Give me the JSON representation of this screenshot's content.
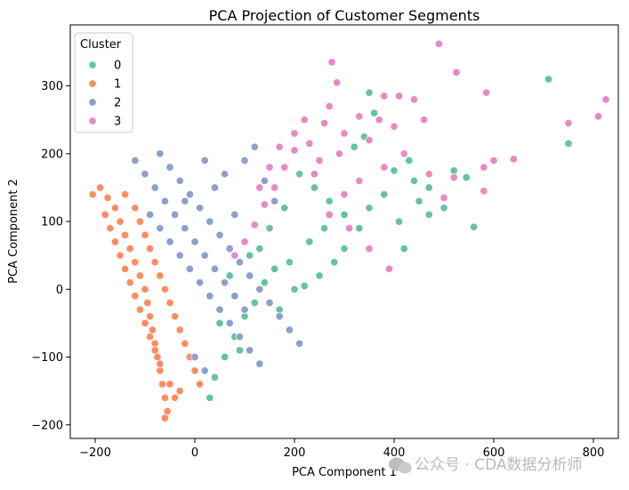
{
  "chart_data": {
    "type": "scatter",
    "title": "PCA Projection of Customer Segments",
    "xlabel": "PCA Component 1",
    "ylabel": "PCA Component 2",
    "xlim": [
      -250,
      850
    ],
    "ylim": [
      -220,
      390
    ],
    "xticks": [
      -200,
      0,
      200,
      400,
      600,
      800
    ],
    "yticks": [
      -200,
      -100,
      0,
      100,
      200,
      300
    ],
    "grid": false,
    "legend": {
      "title": "Cluster",
      "placement": "top-left"
    },
    "series": [
      {
        "name": "0",
        "color": "#66c2a5",
        "points": [
          [
            710,
            310
          ],
          [
            750,
            215
          ],
          [
            520,
            175
          ],
          [
            545,
            165
          ],
          [
            560,
            92
          ],
          [
            500,
            120
          ],
          [
            470,
            150
          ],
          [
            430,
            190
          ],
          [
            400,
            175
          ],
          [
            380,
            140
          ],
          [
            350,
            120
          ],
          [
            330,
            90
          ],
          [
            300,
            60
          ],
          [
            280,
            40
          ],
          [
            250,
            20
          ],
          [
            220,
            5
          ],
          [
            190,
            40
          ],
          [
            160,
            30
          ],
          [
            140,
            10
          ],
          [
            120,
            -20
          ],
          [
            100,
            -40
          ],
          [
            80,
            -70
          ],
          [
            60,
            -100
          ],
          [
            40,
            -130
          ],
          [
            30,
            -160
          ],
          [
            340,
            225
          ],
          [
            360,
            260
          ],
          [
            350,
            290
          ],
          [
            320,
            210
          ],
          [
            450,
            130
          ],
          [
            420,
            60
          ],
          [
            390,
            30
          ],
          [
            410,
            100
          ],
          [
            440,
            160
          ],
          [
            470,
            110
          ],
          [
            300,
            110
          ],
          [
            270,
            130
          ],
          [
            240,
            150
          ],
          [
            210,
            170
          ],
          [
            260,
            90
          ],
          [
            180,
            120
          ],
          [
            150,
            90
          ],
          [
            130,
            60
          ],
          [
            200,
            0
          ],
          [
            170,
            -30
          ],
          [
            90,
            -90
          ],
          [
            50,
            -50
          ],
          [
            70,
            20
          ],
          [
            110,
            50
          ],
          [
            230,
            70
          ]
        ]
      },
      {
        "name": "1",
        "color": "#fc8d62",
        "points": [
          [
            -205,
            140
          ],
          [
            -190,
            150
          ],
          [
            -175,
            135
          ],
          [
            -160,
            120
          ],
          [
            -150,
            100
          ],
          [
            -140,
            80
          ],
          [
            -130,
            60
          ],
          [
            -120,
            40
          ],
          [
            -110,
            20
          ],
          [
            -100,
            0
          ],
          [
            -95,
            -20
          ],
          [
            -90,
            -40
          ],
          [
            -85,
            -60
          ],
          [
            -80,
            -80
          ],
          [
            -75,
            -100
          ],
          [
            -70,
            -120
          ],
          [
            -65,
            -140
          ],
          [
            -60,
            -160
          ],
          [
            -55,
            -180
          ],
          [
            -60,
            -190
          ],
          [
            -120,
            120
          ],
          [
            -140,
            140
          ],
          [
            -110,
            100
          ],
          [
            -100,
            80
          ],
          [
            -90,
            60
          ],
          [
            -80,
            40
          ],
          [
            -70,
            20
          ],
          [
            -60,
            0
          ],
          [
            -50,
            -20
          ],
          [
            -40,
            -40
          ],
          [
            -30,
            -60
          ],
          [
            -20,
            -80
          ],
          [
            -10,
            -100
          ],
          [
            0,
            -120
          ],
          [
            10,
            -140
          ],
          [
            -180,
            110
          ],
          [
            -170,
            90
          ],
          [
            -160,
            70
          ],
          [
            -150,
            50
          ],
          [
            -140,
            30
          ],
          [
            -130,
            10
          ],
          [
            -120,
            -10
          ],
          [
            -110,
            -30
          ],
          [
            -100,
            -50
          ],
          [
            -90,
            -70
          ],
          [
            -80,
            -90
          ],
          [
            -70,
            -110
          ],
          [
            -50,
            -140
          ],
          [
            -40,
            -160
          ],
          [
            -30,
            -150
          ]
        ]
      },
      {
        "name": "2",
        "color": "#8da0cb",
        "points": [
          [
            -70,
            200
          ],
          [
            -50,
            180
          ],
          [
            -30,
            160
          ],
          [
            -10,
            140
          ],
          [
            10,
            120
          ],
          [
            30,
            100
          ],
          [
            50,
            80
          ],
          [
            70,
            60
          ],
          [
            90,
            40
          ],
          [
            110,
            20
          ],
          [
            130,
            0
          ],
          [
            150,
            -20
          ],
          [
            170,
            -40
          ],
          [
            190,
            -60
          ],
          [
            210,
            -80
          ],
          [
            -80,
            150
          ],
          [
            -60,
            130
          ],
          [
            -40,
            110
          ],
          [
            -20,
            90
          ],
          [
            0,
            70
          ],
          [
            20,
            50
          ],
          [
            40,
            30
          ],
          [
            60,
            10
          ],
          [
            80,
            -10
          ],
          [
            100,
            -30
          ],
          [
            -100,
            170
          ],
          [
            -120,
            190
          ],
          [
            -90,
            110
          ],
          [
            -70,
            90
          ],
          [
            -50,
            70
          ],
          [
            -30,
            50
          ],
          [
            -10,
            30
          ],
          [
            10,
            10
          ],
          [
            30,
            -10
          ],
          [
            50,
            -30
          ],
          [
            70,
            -50
          ],
          [
            90,
            -70
          ],
          [
            110,
            -90
          ],
          [
            130,
            -110
          ],
          [
            20,
            -120
          ],
          [
            0,
            -100
          ],
          [
            -20,
            130
          ],
          [
            40,
            150
          ],
          [
            60,
            170
          ],
          [
            120,
            210
          ],
          [
            100,
            190
          ],
          [
            140,
            160
          ],
          [
            160,
            130
          ],
          [
            80,
            110
          ],
          [
            20,
            190
          ]
        ]
      },
      {
        "name": "3",
        "color": "#e78ac3",
        "points": [
          [
            490,
            362
          ],
          [
            275,
            335
          ],
          [
            525,
            320
          ],
          [
            285,
            305
          ],
          [
            410,
            285
          ],
          [
            440,
            280
          ],
          [
            380,
            285
          ],
          [
            585,
            290
          ],
          [
            330,
            255
          ],
          [
            370,
            250
          ],
          [
            270,
            270
          ],
          [
            460,
            250
          ],
          [
            400,
            240
          ],
          [
            300,
            230
          ],
          [
            350,
            220
          ],
          [
            420,
            200
          ],
          [
            600,
            190
          ],
          [
            640,
            192
          ],
          [
            580,
            180
          ],
          [
            750,
            245
          ],
          [
            810,
            255
          ],
          [
            825,
            280
          ],
          [
            470,
            170
          ],
          [
            520,
            165
          ],
          [
            500,
            135
          ],
          [
            580,
            145
          ],
          [
            380,
            180
          ],
          [
            330,
            160
          ],
          [
            290,
            200
          ],
          [
            250,
            190
          ],
          [
            230,
            215
          ],
          [
            200,
            205
          ],
          [
            180,
            180
          ],
          [
            160,
            150
          ],
          [
            140,
            125
          ],
          [
            120,
            95
          ],
          [
            100,
            70
          ],
          [
            80,
            50
          ],
          [
            260,
            245
          ],
          [
            220,
            250
          ],
          [
            200,
            230
          ],
          [
            170,
            210
          ],
          [
            150,
            180
          ],
          [
            130,
            150
          ],
          [
            240,
            170
          ],
          [
            270,
            110
          ],
          [
            310,
            90
          ],
          [
            350,
            60
          ],
          [
            390,
            30
          ],
          [
            300,
            140
          ]
        ]
      }
    ]
  },
  "watermark": {
    "text": "公众号 · CDA数据分析师"
  }
}
